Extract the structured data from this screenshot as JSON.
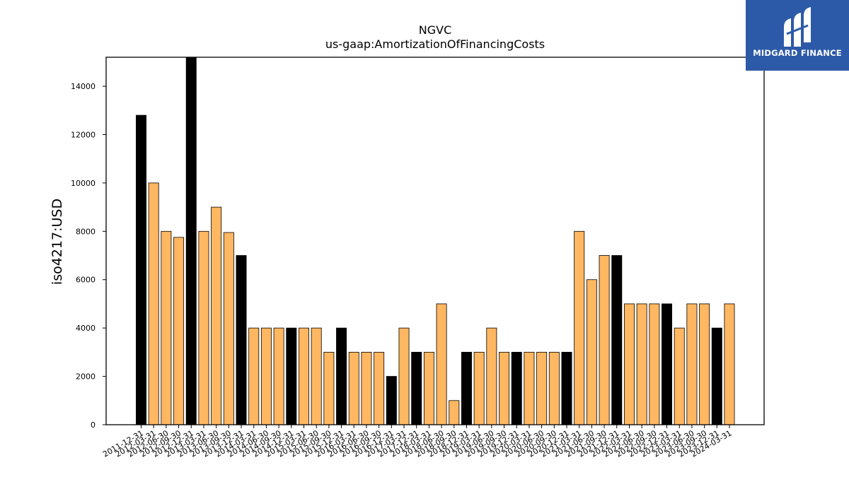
{
  "logo": {
    "text": "MIDGARD FINANCE",
    "background": "#2d5aa8"
  },
  "chart_data": {
    "type": "bar",
    "title": "NGVC",
    "subtitle": "us-gaap:AmortizationOfFinancingCosts",
    "ylabel": "iso4217:USD",
    "xlabel": "",
    "ylim": [
      0,
      15200
    ],
    "yticks": [
      0,
      2000,
      4000,
      6000,
      8000,
      10000,
      12000,
      14000
    ],
    "grid": false,
    "colors": {
      "annual": "#000000",
      "quarterly": "#ffb761",
      "edge": "#000000"
    },
    "categories": [
      "2011-12-31",
      "2012-03-31",
      "2012-06-30",
      "2012-09-30",
      "2012-12-31",
      "2013-03-31",
      "2013-06-30",
      "2013-09-30",
      "2013-12-31",
      "2014-03-31",
      "2014-06-30",
      "2014-09-30",
      "2014-12-31",
      "2015-03-31",
      "2015-06-30",
      "2015-09-30",
      "2015-12-31",
      "2016-03-31",
      "2016-06-30",
      "2016-09-30",
      "2016-12-31",
      "2017-03-31",
      "2017-12-31",
      "2018-03-31",
      "2018-06-30",
      "2018-09-30",
      "2018-12-31",
      "2019-03-31",
      "2019-06-30",
      "2019-09-30",
      "2019-12-31",
      "2020-03-31",
      "2020-06-30",
      "2020-09-30",
      "2020-12-31",
      "2021-03-31",
      "2021-06-30",
      "2021-09-30",
      "2021-12-31",
      "2022-03-31",
      "2022-06-30",
      "2022-09-30",
      "2022-12-31",
      "2023-03-31",
      "2023-06-30",
      "2023-09-30",
      "2023-12-31",
      "2024-03-31"
    ],
    "values": [
      12800,
      10000,
      8000,
      7750,
      15200,
      8000,
      9000,
      7950,
      7000,
      4000,
      4000,
      4000,
      4000,
      4000,
      4000,
      3000,
      4000,
      3000,
      3000,
      3000,
      2000,
      4000,
      3000,
      3000,
      5000,
      1000,
      3000,
      3000,
      4000,
      3000,
      3000,
      3000,
      3000,
      3000,
      3000,
      8000,
      6000,
      7000,
      7000,
      5000,
      5000,
      5000,
      5000,
      4000,
      5000,
      5000,
      4000,
      5000
    ],
    "annual": [
      true,
      false,
      false,
      false,
      true,
      false,
      false,
      false,
      true,
      false,
      false,
      false,
      true,
      false,
      false,
      false,
      true,
      false,
      false,
      false,
      true,
      false,
      true,
      false,
      false,
      false,
      true,
      false,
      false,
      false,
      true,
      false,
      false,
      false,
      true,
      false,
      false,
      false,
      true,
      false,
      false,
      false,
      true,
      false,
      false,
      false,
      true,
      false
    ]
  }
}
